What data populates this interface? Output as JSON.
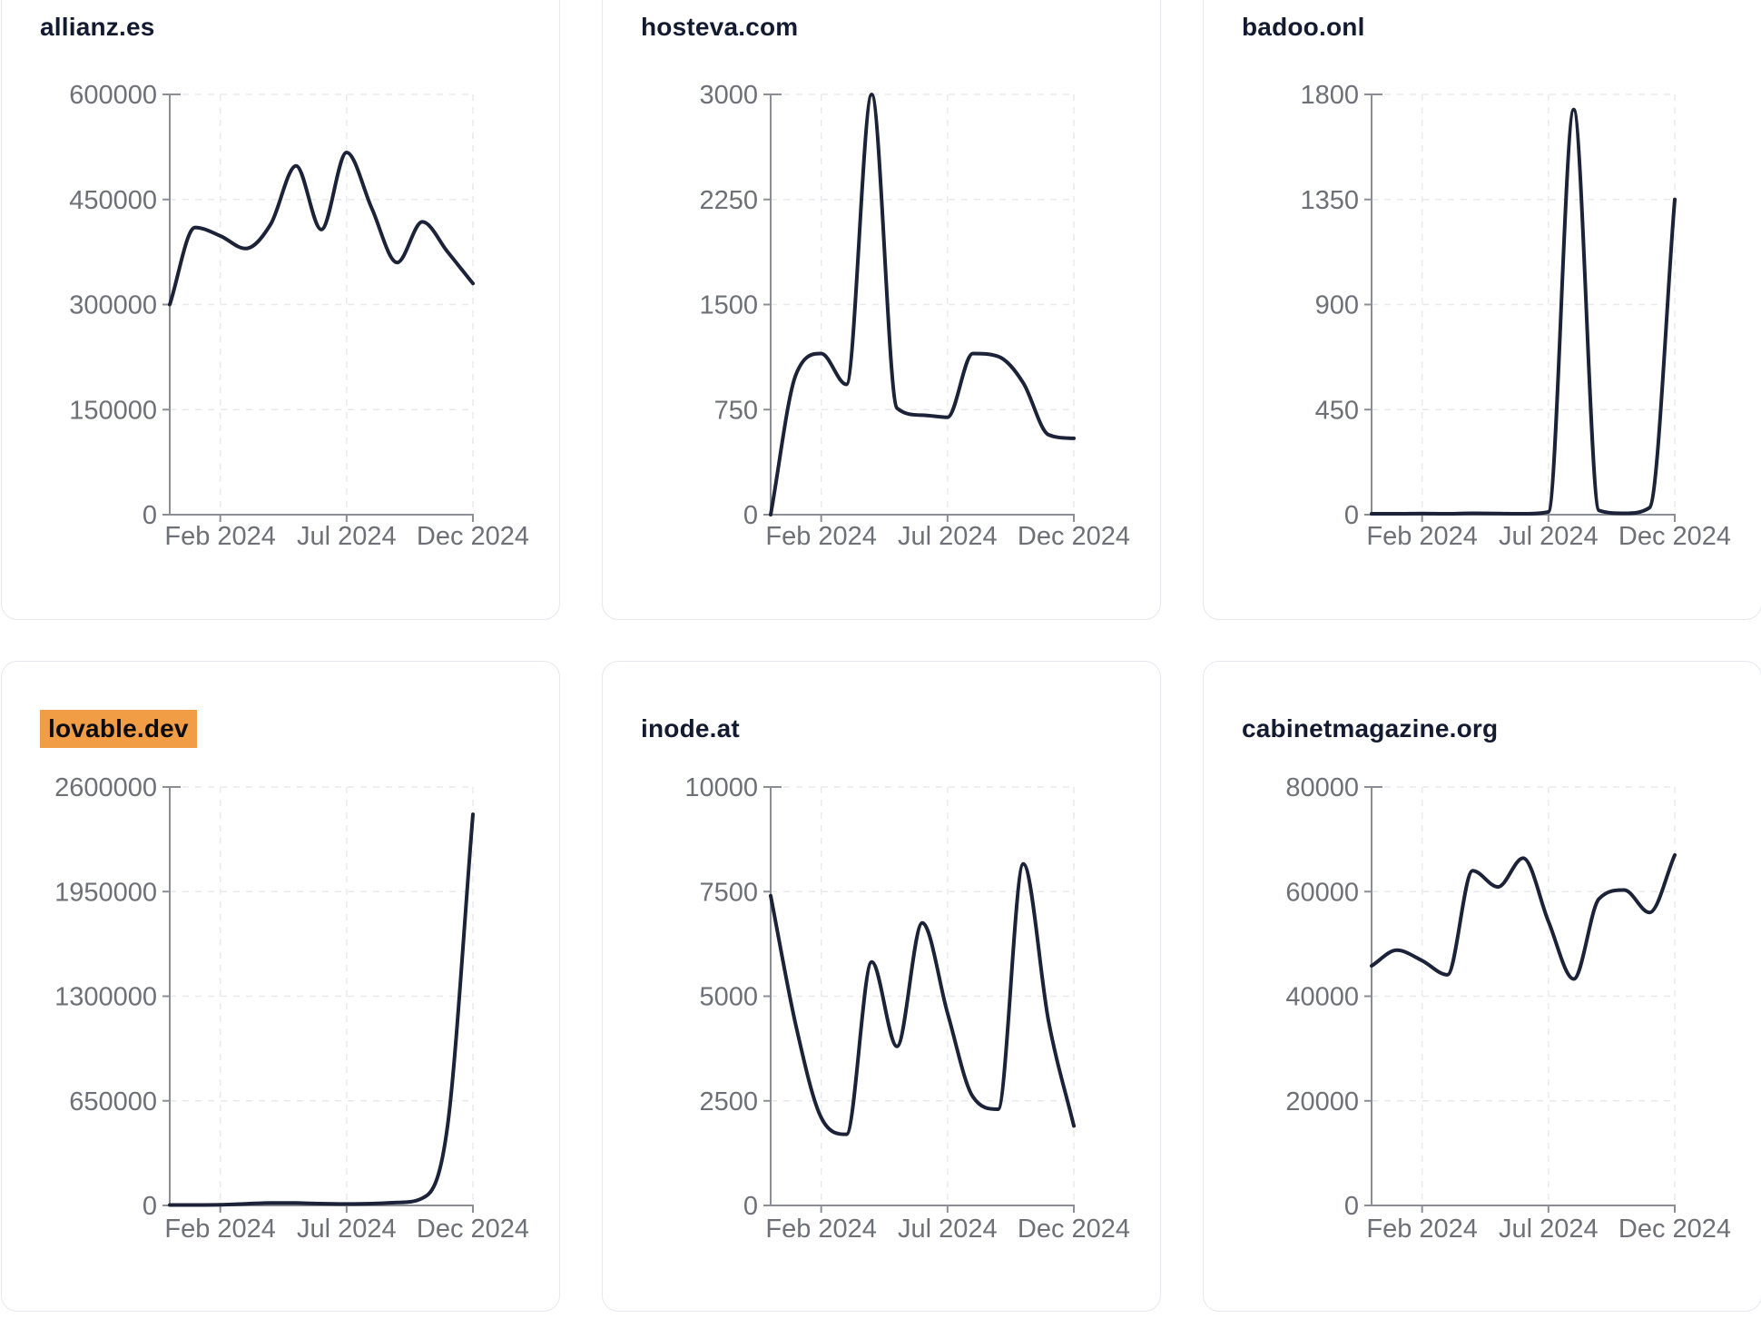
{
  "page": {
    "background": "#ffffff"
  },
  "style": {
    "line_color": "#1c2237",
    "title_color": "#141b31",
    "axis_color": "#8b8e94",
    "grid_color": "#e9eaee",
    "tick_label_color": "#6d7076",
    "card_border_color": "#e5e8ee",
    "highlight_color": "#f09d45"
  },
  "chart_data": [
    {
      "type": "line",
      "title": "allianz.es",
      "title_highlighted": false,
      "x": [
        "Dec 2023",
        "Jan 2024",
        "Feb 2024",
        "Mar 2024",
        "Apr 2024",
        "May 2024",
        "Jun 2024",
        "Jul 2024",
        "Aug 2024",
        "Sep 2024",
        "Oct 2024",
        "Nov 2024",
        "Dec 2024"
      ],
      "values": [
        300000,
        410000,
        398000,
        380000,
        415000,
        498000,
        407000,
        517000,
        437000,
        360000,
        418000,
        375000,
        330000
      ],
      "ylim": [
        0,
        600000
      ],
      "y_tick_labels": [
        "600000",
        "450000",
        "300000",
        "150000",
        "0"
      ],
      "x_tick_labels": [
        "Feb 2024",
        "Jul 2024",
        "Dec 2024"
      ],
      "x_tick_indices": [
        2,
        7,
        12
      ],
      "grid": "dashed",
      "legend": "none"
    },
    {
      "type": "line",
      "title": "hosteva.com",
      "title_highlighted": false,
      "x": [
        "Dec 2023",
        "Jan 2024",
        "Feb 2024",
        "Mar 2024",
        "Apr 2024",
        "May 2024",
        "Jun 2024",
        "Jul 2024",
        "Aug 2024",
        "Sep 2024",
        "Oct 2024",
        "Nov 2024",
        "Dec 2024"
      ],
      "values": [
        0,
        1000,
        1150,
        930,
        3000,
        760,
        710,
        695,
        1150,
        1130,
        940,
        570,
        545
      ],
      "ylim": [
        0,
        3000
      ],
      "y_tick_labels": [
        "3000",
        "2250",
        "1500",
        "750",
        "0"
      ],
      "x_tick_labels": [
        "Feb 2024",
        "Jul 2024",
        "Dec 2024"
      ],
      "x_tick_indices": [
        2,
        7,
        12
      ],
      "grid": "dashed",
      "legend": "none"
    },
    {
      "type": "line",
      "title": "badoo.onl",
      "title_highlighted": false,
      "x": [
        "Dec 2023",
        "Jan 2024",
        "Feb 2024",
        "Mar 2024",
        "Apr 2024",
        "May 2024",
        "Jun 2024",
        "Jul 2024",
        "Aug 2024",
        "Sep 2024",
        "Oct 2024",
        "Nov 2024",
        "Dec 2024"
      ],
      "values": [
        4,
        4,
        5,
        4,
        6,
        5,
        4,
        12,
        1735,
        18,
        6,
        30,
        1350
      ],
      "ylim": [
        0,
        1800
      ],
      "y_tick_labels": [
        "1800",
        "1350",
        "900",
        "450",
        "0"
      ],
      "x_tick_labels": [
        "Feb 2024",
        "Jul 2024",
        "Dec 2024"
      ],
      "x_tick_indices": [
        2,
        7,
        12
      ],
      "grid": "dashed",
      "legend": "none"
    },
    {
      "type": "line",
      "title": "lovable.dev",
      "title_highlighted": true,
      "x": [
        "Dec 2023",
        "Jan 2024",
        "Feb 2024",
        "Mar 2024",
        "Apr 2024",
        "May 2024",
        "Jun 2024",
        "Jul 2024",
        "Aug 2024",
        "Sep 2024",
        "Oct 2024",
        "Nov 2024",
        "Dec 2024"
      ],
      "values": [
        3000,
        3000,
        4000,
        10000,
        16000,
        15000,
        11000,
        9000,
        11000,
        18000,
        45000,
        500000,
        2430000
      ],
      "ylim": [
        0,
        2600000
      ],
      "y_tick_labels": [
        "2600000",
        "1950000",
        "1300000",
        "650000",
        "0"
      ],
      "x_tick_labels": [
        "Feb 2024",
        "Jul 2024",
        "Dec 2024"
      ],
      "x_tick_indices": [
        2,
        7,
        12
      ],
      "grid": "dashed",
      "legend": "none"
    },
    {
      "type": "line",
      "title": "inode.at",
      "title_highlighted": false,
      "x": [
        "Dec 2023",
        "Jan 2024",
        "Feb 2024",
        "Mar 2024",
        "Apr 2024",
        "May 2024",
        "Jun 2024",
        "Jul 2024",
        "Aug 2024",
        "Sep 2024",
        "Oct 2024",
        "Nov 2024",
        "Dec 2024"
      ],
      "values": [
        7400,
        4300,
        2100,
        1700,
        5820,
        3800,
        6750,
        4600,
        2600,
        2300,
        8160,
        4400,
        1900
      ],
      "ylim": [
        0,
        10000
      ],
      "y_tick_labels": [
        "10000",
        "7500",
        "5000",
        "2500",
        "0"
      ],
      "x_tick_labels": [
        "Feb 2024",
        "Jul 2024",
        "Dec 2024"
      ],
      "x_tick_indices": [
        2,
        7,
        12
      ],
      "grid": "dashed",
      "legend": "none"
    },
    {
      "type": "line",
      "title": "cabinetmagazine.org",
      "title_highlighted": false,
      "x": [
        "Dec 2023",
        "Jan 2024",
        "Feb 2024",
        "Mar 2024",
        "Apr 2024",
        "May 2024",
        "Jun 2024",
        "Jul 2024",
        "Aug 2024",
        "Sep 2024",
        "Oct 2024",
        "Nov 2024",
        "Dec 2024"
      ],
      "values": [
        45800,
        48800,
        46800,
        44100,
        64000,
        60900,
        66400,
        54300,
        43300,
        58600,
        60300,
        56000,
        67000
      ],
      "ylim": [
        0,
        80000
      ],
      "y_tick_labels": [
        "80000",
        "60000",
        "40000",
        "20000",
        "0"
      ],
      "x_tick_labels": [
        "Feb 2024",
        "Jul 2024",
        "Dec 2024"
      ],
      "x_tick_indices": [
        2,
        7,
        12
      ],
      "grid": "dashed",
      "legend": "none"
    }
  ]
}
